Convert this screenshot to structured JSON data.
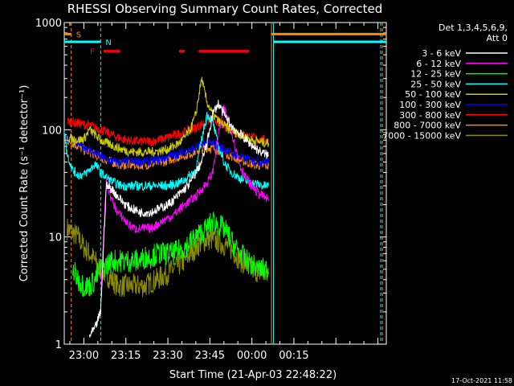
{
  "chart_data": {
    "type": "line",
    "title": "RHESSI Observing Summary Count Rates, Corrected",
    "xlabel": "Start Time (21-Apr-03 22:48:22)",
    "ylabel": "Corrected Count Rate (s⁻¹ detector⁻¹)",
    "yscale": "log",
    "ylim": [
      1,
      1000
    ],
    "xlim_minutes": [
      -7,
      108
    ],
    "x_ticks": [
      {
        "label": "23:00",
        "m": 0
      },
      {
        "label": "23:15",
        "m": 15
      },
      {
        "label": "23:30",
        "m": 30
      },
      {
        "label": "23:45",
        "m": 45
      },
      {
        "label": "00:00",
        "m": 60
      },
      {
        "label": "00:15",
        "m": 75
      }
    ],
    "y_ticks": [
      {
        "label": "1",
        "v": 1
      },
      {
        "label": "10",
        "v": 10
      },
      {
        "label": "100",
        "v": 100
      },
      {
        "label": "1000",
        "v": 1000
      }
    ],
    "legend": {
      "placement": "top-right",
      "header": [
        "Det 1,3,4,5,6,9,",
        "Att 0"
      ]
    },
    "series": [
      {
        "name": "3 - 6 keV",
        "color": "#ffffff",
        "x": [
          2,
          4,
          6,
          8,
          10,
          12,
          14,
          16,
          18,
          20,
          22,
          24,
          26,
          28,
          30,
          32,
          34,
          36,
          38,
          40,
          42,
          44,
          46,
          48,
          50,
          52,
          54,
          56,
          58,
          60,
          62,
          64,
          66
        ],
        "y": [
          1.2,
          1.4,
          2,
          30,
          28,
          24,
          21,
          19,
          18,
          17,
          17,
          17,
          18,
          19,
          20,
          22,
          25,
          28,
          32,
          40,
          50,
          75,
          140,
          175,
          140,
          115,
          100,
          90,
          80,
          72,
          65,
          60,
          58
        ]
      },
      {
        "name": "6 - 12 keV",
        "color": "#ff00ff",
        "x": [
          6,
          8,
          10,
          12,
          14,
          16,
          18,
          20,
          22,
          24,
          26,
          28,
          30,
          32,
          34,
          36,
          38,
          40,
          42,
          44,
          46,
          48,
          50,
          52,
          54,
          56,
          58,
          60,
          62,
          64,
          66
        ],
        "y": [
          3,
          32,
          22,
          17,
          15,
          13,
          12,
          12,
          12,
          12,
          13,
          14,
          15,
          16,
          18,
          20,
          22,
          24,
          28,
          32,
          40,
          90,
          160,
          120,
          70,
          45,
          35,
          30,
          26,
          24,
          22
        ]
      },
      {
        "name": "12 - 25 keV",
        "color": "#00ff00",
        "x": [
          -4,
          -2,
          0,
          2,
          4,
          6,
          8,
          10,
          12,
          14,
          16,
          18,
          20,
          22,
          24,
          26,
          28,
          30,
          32,
          34,
          36,
          38,
          40,
          42,
          44,
          46,
          48,
          50,
          52,
          54,
          56,
          58,
          60,
          62,
          64,
          66
        ],
        "y": [
          5,
          4,
          3.5,
          3.5,
          4,
          5,
          5.5,
          6,
          6,
          6,
          6,
          6,
          6,
          6.5,
          6.5,
          7,
          7,
          7,
          7,
          7.5,
          8,
          9,
          10,
          11,
          12,
          14,
          13,
          12,
          10,
          8,
          7,
          6,
          5.5,
          5,
          5,
          5
        ]
      },
      {
        "name": "25 - 50 keV",
        "color": "#00ffff",
        "x": [
          -7,
          -6,
          -4,
          -2,
          0,
          2,
          4,
          6,
          8,
          10,
          12,
          14,
          16,
          18,
          20,
          22,
          24,
          26,
          28,
          30,
          32,
          34,
          36,
          38,
          40,
          42,
          44,
          46,
          48,
          50,
          52,
          54,
          56,
          58,
          60,
          62,
          64,
          66
        ],
        "y": [
          100,
          60,
          42,
          38,
          38,
          42,
          48,
          40,
          36,
          33,
          31,
          30,
          30,
          30,
          30,
          30,
          30,
          30,
          30,
          30,
          31,
          32,
          34,
          38,
          42,
          80,
          140,
          120,
          70,
          50,
          42,
          38,
          35,
          33,
          32,
          31,
          30,
          30
        ]
      },
      {
        "name": "50 - 100 keV",
        "color": "#cccc00",
        "x": [
          -6,
          -4,
          -2,
          0,
          2,
          4,
          6,
          8,
          10,
          12,
          14,
          16,
          18,
          20,
          22,
          24,
          26,
          28,
          30,
          32,
          34,
          36,
          38,
          40,
          42,
          44,
          46,
          48,
          50,
          52,
          54,
          56,
          58,
          60,
          62,
          64,
          66
        ],
        "y": [
          85,
          82,
          80,
          82,
          100,
          90,
          80,
          75,
          72,
          68,
          65,
          63,
          62,
          62,
          62,
          62,
          63,
          64,
          66,
          70,
          75,
          85,
          100,
          140,
          300,
          180,
          140,
          120,
          110,
          100,
          95,
          90,
          85,
          80,
          78,
          76,
          75
        ]
      },
      {
        "name": "100 - 300 keV",
        "color": "#0000ff",
        "x": [
          -6,
          -4,
          -2,
          0,
          2,
          4,
          6,
          8,
          10,
          12,
          14,
          16,
          18,
          20,
          22,
          24,
          26,
          28,
          30,
          32,
          34,
          36,
          38,
          40,
          42,
          44,
          46,
          48,
          50,
          52,
          54,
          56,
          58,
          60,
          62,
          64,
          66
        ],
        "y": [
          85,
          80,
          75,
          70,
          65,
          60,
          56,
          53,
          51,
          50,
          50,
          50,
          50,
          50,
          50,
          51,
          52,
          54,
          56,
          58,
          60,
          62,
          65,
          68,
          72,
          75,
          74,
          70,
          66,
          62,
          58,
          55,
          53,
          52,
          51,
          50,
          50
        ]
      },
      {
        "name": "300 - 800 keV",
        "color": "#ff0000",
        "x": [
          -6,
          -4,
          -2,
          0,
          2,
          4,
          6,
          8,
          10,
          12,
          14,
          16,
          18,
          20,
          22,
          24,
          26,
          28,
          30,
          32,
          34,
          36,
          38,
          40,
          42,
          44,
          46,
          48,
          50,
          52,
          54,
          56,
          58,
          60,
          62,
          64,
          66
        ],
        "y": [
          120,
          118,
          115,
          112,
          110,
          105,
          100,
          95,
          90,
          85,
          82,
          80,
          78,
          78,
          78,
          78,
          80,
          82,
          85,
          88,
          92,
          96,
          100,
          105,
          112,
          120,
          125,
          120,
          110,
          100,
          95,
          90,
          88,
          85,
          82,
          80,
          80
        ]
      },
      {
        "name": "800 - 7000 keV",
        "color": "#ff8c00",
        "x": [
          -6,
          -4,
          -2,
          0,
          2,
          4,
          6,
          8,
          10,
          12,
          14,
          16,
          18,
          20,
          22,
          24,
          26,
          28,
          30,
          32,
          34,
          36,
          38,
          40,
          42,
          44,
          46,
          48,
          50,
          52,
          54,
          56,
          58,
          60,
          62,
          64,
          66
        ],
        "y": [
          80,
          75,
          70,
          65,
          62,
          58,
          55,
          52,
          50,
          48,
          47,
          47,
          47,
          47,
          47,
          48,
          49,
          50,
          52,
          54,
          56,
          58,
          60,
          63,
          66,
          68,
          67,
          65,
          62,
          58,
          55,
          52,
          50,
          48,
          47,
          46,
          46
        ]
      },
      {
        "name": "7000 - 15000 keV",
        "color": "#8b8b00",
        "x": [
          -6,
          -4,
          -2,
          0,
          2,
          4,
          6,
          8,
          10,
          12,
          14,
          16,
          18,
          20,
          22,
          24,
          26,
          28,
          30,
          32,
          34,
          36,
          38,
          40,
          42,
          44,
          46,
          48,
          50,
          52,
          54,
          56,
          58,
          60,
          62,
          64,
          66
        ],
        "y": [
          12,
          11,
          10,
          8,
          7,
          6,
          5,
          4.5,
          4,
          3.5,
          3.5,
          3.5,
          3.5,
          3.5,
          3.5,
          3.8,
          4,
          4.3,
          4.6,
          5,
          5.5,
          6,
          7,
          8,
          9,
          9.5,
          9.5,
          9,
          8.5,
          8,
          7,
          6,
          5.5,
          5,
          4.8,
          4.5,
          4.5
        ]
      }
    ],
    "annotations": {
      "vertical_lines": [
        {
          "m": -4.5,
          "color": "#ff8c00",
          "style": "dashed"
        },
        {
          "m": 6,
          "color": "#00ffff",
          "style": "dashed"
        },
        {
          "m": 67,
          "color": "#ff8c00",
          "style": "solid"
        },
        {
          "m": 67.7,
          "color": "#00ffff",
          "style": "solid"
        },
        {
          "m": 106,
          "color": "#00ffff",
          "style": "dashed"
        },
        {
          "m": 106.6,
          "color": "#ff8c00",
          "style": "dashed"
        }
      ],
      "markers": [
        {
          "label": "S",
          "m": -4.5,
          "color": "#ff8c00"
        },
        {
          "label": "N",
          "m": 6,
          "color": "#00ffff"
        },
        {
          "label": "F",
          "m": 5,
          "color": "#ff0000"
        }
      ],
      "bars": [
        {
          "name": "saa-bar",
          "color": "#ff8c00",
          "level": 780,
          "segments": [
            [
              -7,
              -4.5
            ],
            [
              67,
              108
            ]
          ]
        },
        {
          "name": "night-bar",
          "color": "#00ffff",
          "level": 660,
          "segments": [
            [
              -7,
              6
            ],
            [
              67.7,
              108
            ]
          ]
        },
        {
          "name": "flare-bar",
          "color": "#ff0000",
          "level": 540,
          "segments": [
            [
              7,
              13
            ],
            [
              34,
              36
            ],
            [
              41,
              59
            ]
          ]
        }
      ]
    },
    "footer_timestamp": "17-Oct-2021 11:58"
  }
}
